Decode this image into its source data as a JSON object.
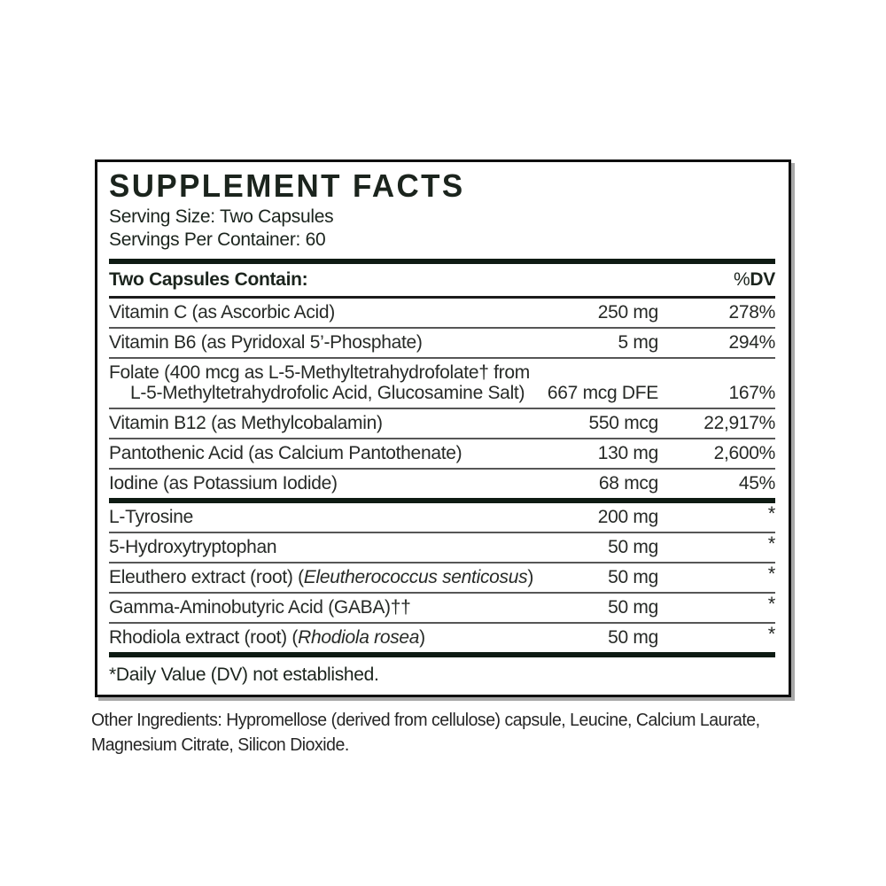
{
  "panel": {
    "title": "SUPPLEMENT FACTS",
    "serving_lines": [
      "Serving Size: Two Capsules",
      "Servings Per Container: 60"
    ],
    "footnote": "*Daily Value (DV) not established."
  },
  "table": {
    "header_left": "Two Capsules Contain:",
    "header_right_percent": "%",
    "header_right_dv": "DV",
    "sections": [
      {
        "rows": [
          {
            "lines": [
              [
                {
                  "t": "Vitamin C (as Ascorbic Acid)"
                }
              ]
            ],
            "amount": "250 mg",
            "dv": "278%"
          },
          {
            "lines": [
              [
                {
                  "t": "Vitamin B6 (as Pyridoxal 5’-Phosphate)"
                }
              ]
            ],
            "amount": "5 mg",
            "dv": "294%"
          },
          {
            "lines": [
              [
                {
                  "t": "Folate (400 mcg as L-5-Methyltetrahydrofolate† from"
                }
              ],
              [
                {
                  "t": "L-5-Methyltetrahydrofolic Acid, Glucosamine Salt)"
                }
              ]
            ],
            "amount": "667 mcg DFE",
            "dv": "167%"
          },
          {
            "lines": [
              [
                {
                  "t": "Vitamin B12 (as Methylcobalamin)"
                }
              ]
            ],
            "amount": "550 mcg",
            "dv": "22,917%"
          },
          {
            "lines": [
              [
                {
                  "t": "Pantothenic Acid (as Calcium Pantothenate)"
                }
              ]
            ],
            "amount": "130 mg",
            "dv": "2,600%"
          },
          {
            "lines": [
              [
                {
                  "t": "Iodine (as Potassium Iodide)"
                }
              ]
            ],
            "amount": "68 mcg",
            "dv": "45%"
          }
        ]
      },
      {
        "rows": [
          {
            "lines": [
              [
                {
                  "t": "L-Tyrosine"
                }
              ]
            ],
            "amount": "200 mg",
            "dv": "*",
            "star": true
          },
          {
            "lines": [
              [
                {
                  "t": "5-Hydroxytryptophan"
                }
              ]
            ],
            "amount": "50 mg",
            "dv": "*",
            "star": true
          },
          {
            "lines": [
              [
                {
                  "t": "Eleuthero extract (root) ("
                },
                {
                  "t": "Eleutherococcus senticosus",
                  "i": true
                },
                {
                  "t": ")"
                }
              ]
            ],
            "amount": "50 mg",
            "dv": "*",
            "star": true
          },
          {
            "lines": [
              [
                {
                  "t": "Gamma-Aminobutyric Acid (GABA)††"
                }
              ]
            ],
            "amount": "50 mg",
            "dv": "*",
            "star": true
          },
          {
            "lines": [
              [
                {
                  "t": "Rhodiola extract (root) ("
                },
                {
                  "t": "Rhodiola rosea",
                  "i": true
                },
                {
                  "t": ")"
                }
              ]
            ],
            "amount": "50 mg",
            "dv": "*",
            "star": true
          }
        ]
      }
    ]
  },
  "other_ingredients": "Other Ingredients: Hypromellose (derived from cellulose) capsule, Leucine, Calcium Laurate, Magnesium Citrate, Silicon Dioxide.",
  "colors": {
    "ink": "#1b241d",
    "body_text": "#272a27",
    "rule_thin": "#565656",
    "rule_thick": "#0e1b13",
    "box_border": "#0f0f0f"
  }
}
